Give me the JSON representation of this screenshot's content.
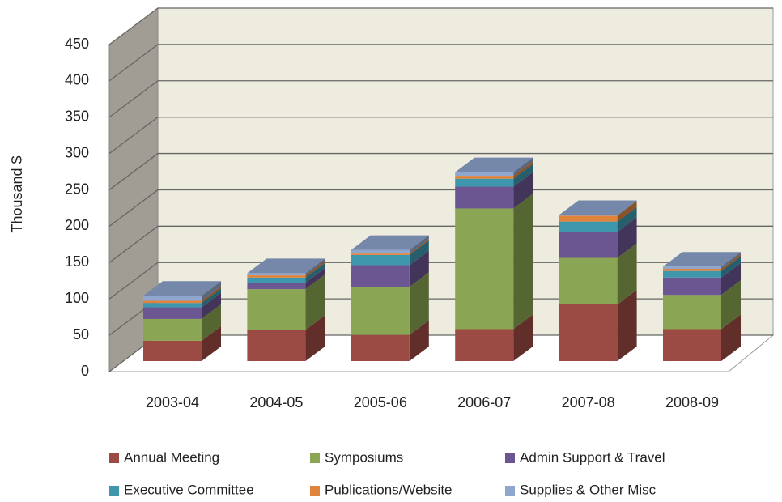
{
  "chart_data": {
    "type": "bar",
    "stacked": true,
    "three_d": true,
    "y_label": "Thousand $",
    "categories": [
      "2003-04",
      "2004-05",
      "2005-06",
      "2006-07",
      "2007-08",
      "2008-09"
    ],
    "series": [
      {
        "name": "Annual Meeting",
        "color": "#9c4a44",
        "values": [
          28,
          43,
          36,
          44,
          78,
          44
        ]
      },
      {
        "name": "Symposiums",
        "color": "#8aa553",
        "values": [
          30,
          56,
          66,
          166,
          64,
          47
        ]
      },
      {
        "name": "Admin Support & Travel",
        "color": "#6c5691",
        "values": [
          16,
          9,
          30,
          30,
          36,
          24
        ]
      },
      {
        "name": "Executive Committee",
        "color": "#3e97ac",
        "values": [
          6,
          7,
          14,
          11,
          14,
          9
        ]
      },
      {
        "name": "Publications/Website",
        "color": "#e0843c",
        "values": [
          3,
          3,
          2,
          4,
          8,
          3
        ]
      },
      {
        "name": "Supplies & Other Misc",
        "color": "#8fa6cf",
        "values": [
          7,
          3,
          5,
          5,
          1,
          3
        ]
      }
    ],
    "ylim": [
      0,
      450
    ],
    "yticks": [
      0,
      50,
      100,
      150,
      200,
      250,
      300,
      350,
      400,
      450
    ],
    "grid": true
  }
}
